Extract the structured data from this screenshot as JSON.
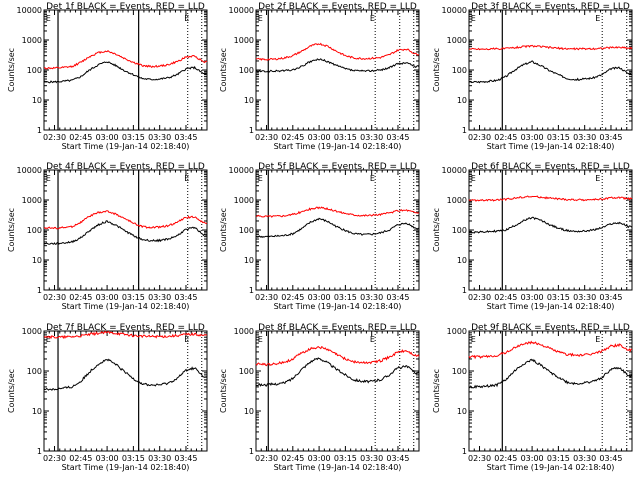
{
  "figure": {
    "xlabel": "Start Time (19-Jan-14 02:18:40)",
    "ylabel": "Counts/sec",
    "x_tick_labels": [
      "02:30",
      "02:45",
      "03:00",
      "03:15",
      "03:30",
      "03:45"
    ],
    "y_tick_labels": [
      "1",
      "10",
      "100",
      "1000",
      "10000"
    ],
    "legend_text": "BLACK = Events, RED = LLD"
  },
  "colors": {
    "events": "#000000",
    "lld": "#ff0000",
    "background": "#ffffff",
    "axes": "#000000"
  },
  "chart_data": [
    {
      "type": "line",
      "title": "Det 1f BLACK = Events, RED = LLD",
      "xlabel": "Start Time (19-Jan-14 02:18:40)",
      "ylabel": "Counts/sec",
      "yscale": "log",
      "ylim": [
        1,
        10000
      ],
      "xlim": [
        "02:24",
        "03:57"
      ],
      "x_ticks": [
        "02:30",
        "02:45",
        "03:00",
        "03:15",
        "03:30",
        "03:45"
      ],
      "x": [
        "02:24",
        "02:30",
        "02:35",
        "02:40",
        "02:45",
        "02:50",
        "02:55",
        "03:00",
        "03:05",
        "03:10",
        "03:15",
        "03:20",
        "03:25",
        "03:30",
        "03:35",
        "03:40",
        "03:45",
        "03:50",
        "03:55"
      ],
      "series": [
        {
          "name": "Events",
          "color": "#000000",
          "values": [
            40,
            40,
            42,
            45,
            60,
            100,
            150,
            190,
            140,
            95,
            70,
            52,
            48,
            50,
            55,
            70,
            110,
            120,
            75
          ]
        },
        {
          "name": "LLD",
          "color": "#ff0000",
          "values": [
            115,
            115,
            120,
            130,
            180,
            280,
            380,
            430,
            340,
            240,
            180,
            140,
            130,
            135,
            150,
            190,
            270,
            290,
            190
          ]
        }
      ],
      "solid_vlines": [
        "02:32",
        "03:18"
      ],
      "dotted_vlines": [
        "03:46",
        "03:54"
      ],
      "markers": [
        {
          "label": "E",
          "at": "02:25"
        },
        {
          "label": "E",
          "at": "03:44"
        }
      ]
    },
    {
      "type": "line",
      "title": "Det 2f BLACK = Events, RED = LLD",
      "xlabel": "Start Time (19-Jan-14 02:18:40)",
      "ylabel": "Counts/sec",
      "yscale": "log",
      "ylim": [
        1,
        10000
      ],
      "xlim": [
        "02:24",
        "03:57"
      ],
      "x_ticks": [
        "02:30",
        "02:45",
        "03:00",
        "03:15",
        "03:30",
        "03:45"
      ],
      "x": [
        "02:24",
        "02:30",
        "02:35",
        "02:40",
        "02:45",
        "02:50",
        "02:55",
        "03:00",
        "03:05",
        "03:10",
        "03:15",
        "03:20",
        "03:25",
        "03:30",
        "03:35",
        "03:40",
        "03:45",
        "03:50",
        "03:55"
      ],
      "series": [
        {
          "name": "Events",
          "color": "#000000",
          "values": [
            90,
            90,
            92,
            95,
            100,
            130,
            190,
            230,
            190,
            140,
            110,
            95,
            92,
            95,
            100,
            120,
            160,
            175,
            130
          ]
        },
        {
          "name": "LLD",
          "color": "#ff0000",
          "values": [
            230,
            225,
            230,
            250,
            300,
            420,
            620,
            760,
            620,
            420,
            300,
            250,
            240,
            245,
            260,
            320,
            460,
            500,
            340
          ]
        }
      ],
      "solid_vlines": [
        "02:31"
      ],
      "dotted_vlines": [
        "03:32",
        "03:46",
        "03:54"
      ],
      "markers": [
        {
          "label": "E",
          "at": "02:25"
        },
        {
          "label": "E",
          "at": "03:29"
        }
      ]
    },
    {
      "type": "line",
      "title": "Det 3f BLACK = Events, RED = LLD",
      "xlabel": "Start Time (19-Jan-14 02:18:40)",
      "ylabel": "Counts/sec",
      "yscale": "log",
      "ylim": [
        1,
        10000
      ],
      "xlim": [
        "02:24",
        "03:57"
      ],
      "x_ticks": [
        "02:30",
        "02:45",
        "03:00",
        "03:15",
        "03:30",
        "03:45"
      ],
      "x": [
        "02:24",
        "02:30",
        "02:35",
        "02:40",
        "02:45",
        "02:50",
        "02:55",
        "03:00",
        "03:05",
        "03:10",
        "03:15",
        "03:20",
        "03:25",
        "03:30",
        "03:35",
        "03:40",
        "03:45",
        "03:50",
        "03:55"
      ],
      "series": [
        {
          "name": "Events",
          "color": "#000000",
          "values": [
            40,
            40,
            42,
            45,
            60,
            100,
            150,
            190,
            140,
            95,
            70,
            52,
            48,
            50,
            55,
            70,
            110,
            120,
            75
          ]
        },
        {
          "name": "LLD",
          "color": "#ff0000",
          "values": [
            500,
            500,
            500,
            510,
            520,
            560,
            600,
            630,
            600,
            560,
            530,
            510,
            505,
            510,
            515,
            530,
            560,
            570,
            540
          ]
        }
      ],
      "solid_vlines": [
        "02:43"
      ],
      "dotted_vlines": [
        "03:40",
        "03:54"
      ],
      "markers": [
        {
          "label": "E",
          "at": "02:25"
        },
        {
          "label": "E",
          "at": "03:36"
        }
      ]
    },
    {
      "type": "line",
      "title": "Det 4f BLACK = Events, RED = LLD",
      "xlabel": "Start Time (19-Jan-14 02:18:40)",
      "ylabel": "Counts/sec",
      "yscale": "log",
      "ylim": [
        1,
        10000
      ],
      "xlim": [
        "02:24",
        "03:57"
      ],
      "x_ticks": [
        "02:30",
        "02:45",
        "03:00",
        "03:15",
        "03:30",
        "03:45"
      ],
      "x": [
        "02:24",
        "02:30",
        "02:35",
        "02:40",
        "02:45",
        "02:50",
        "02:55",
        "03:00",
        "03:05",
        "03:10",
        "03:15",
        "03:20",
        "03:25",
        "03:30",
        "03:35",
        "03:40",
        "03:45",
        "03:50",
        "03:55"
      ],
      "series": [
        {
          "name": "Events",
          "color": "#000000",
          "values": [
            35,
            35,
            37,
            40,
            55,
            95,
            150,
            195,
            145,
            95,
            65,
            48,
            44,
            45,
            50,
            65,
            105,
            120,
            70
          ]
        },
        {
          "name": "LLD",
          "color": "#ff0000",
          "values": [
            120,
            115,
            120,
            130,
            180,
            290,
            380,
            420,
            340,
            240,
            170,
            130,
            120,
            125,
            140,
            180,
            260,
            280,
            170
          ]
        }
      ],
      "solid_vlines": [
        "02:32",
        "03:18"
      ],
      "dotted_vlines": [
        "03:46",
        "03:54"
      ],
      "markers": [
        {
          "label": "E",
          "at": "02:25"
        },
        {
          "label": "E",
          "at": "03:44"
        }
      ]
    },
    {
      "type": "line",
      "title": "Det 5f BLACK = Events, RED = LLD",
      "xlabel": "Start Time (19-Jan-14 02:18:40)",
      "ylabel": "Counts/sec",
      "yscale": "log",
      "ylim": [
        1,
        10000
      ],
      "xlim": [
        "02:24",
        "03:57"
      ],
      "x_ticks": [
        "02:30",
        "02:45",
        "03:00",
        "03:15",
        "03:30",
        "03:45"
      ],
      "x": [
        "02:24",
        "02:30",
        "02:35",
        "02:40",
        "02:45",
        "02:50",
        "02:55",
        "03:00",
        "03:05",
        "03:10",
        "03:15",
        "03:20",
        "03:25",
        "03:30",
        "03:35",
        "03:40",
        "03:45",
        "03:50",
        "03:55"
      ],
      "series": [
        {
          "name": "Events",
          "color": "#000000",
          "values": [
            60,
            60,
            62,
            65,
            75,
            110,
            180,
            240,
            190,
            130,
            95,
            75,
            70,
            72,
            80,
            100,
            150,
            170,
            115
          ]
        },
        {
          "name": "LLD",
          "color": "#ff0000",
          "values": [
            290,
            285,
            290,
            300,
            330,
            400,
            500,
            560,
            500,
            420,
            360,
            320,
            305,
            310,
            330,
            370,
            440,
            460,
            380
          ]
        }
      ],
      "solid_vlines": [
        "02:31"
      ],
      "dotted_vlines": [
        "03:32",
        "03:46",
        "03:54"
      ],
      "markers": [
        {
          "label": "E",
          "at": "02:25"
        },
        {
          "label": "E",
          "at": "03:29"
        }
      ]
    },
    {
      "type": "line",
      "title": "Det 6f BLACK = Events, RED = LLD",
      "xlabel": "Start Time (19-Jan-14 02:18:40)",
      "ylabel": "Counts/sec",
      "yscale": "log",
      "ylim": [
        1,
        10000
      ],
      "xlim": [
        "02:24",
        "03:57"
      ],
      "x_ticks": [
        "02:30",
        "02:45",
        "03:00",
        "03:15",
        "03:30",
        "03:45"
      ],
      "x": [
        "02:24",
        "02:30",
        "02:35",
        "02:40",
        "02:45",
        "02:50",
        "02:55",
        "03:00",
        "03:05",
        "03:10",
        "03:15",
        "03:20",
        "03:25",
        "03:30",
        "03:35",
        "03:40",
        "03:45",
        "03:50",
        "03:55"
      ],
      "series": [
        {
          "name": "Events",
          "color": "#000000",
          "values": [
            85,
            85,
            88,
            92,
            100,
            140,
            200,
            260,
            210,
            150,
            115,
            95,
            90,
            92,
            100,
            120,
            160,
            175,
            130
          ]
        },
        {
          "name": "LLD",
          "color": "#ff0000",
          "values": [
            980,
            970,
            980,
            1000,
            1050,
            1150,
            1260,
            1300,
            1240,
            1150,
            1080,
            1030,
            1010,
            1010,
            1030,
            1080,
            1170,
            1200,
            1100
          ]
        }
      ],
      "solid_vlines": [
        "02:43"
      ],
      "dotted_vlines": [
        "03:40",
        "03:54"
      ],
      "markers": [
        {
          "label": "E",
          "at": "02:25"
        },
        {
          "label": "E",
          "at": "03:36"
        }
      ]
    },
    {
      "type": "line",
      "title": "Det 7f BLACK = Events, RED = LLD",
      "xlabel": "Start Time (19-Jan-14 02:18:40)",
      "ylabel": "Counts/sec",
      "yscale": "log",
      "ylim": [
        1,
        1000
      ],
      "xlim": [
        "02:24",
        "03:57"
      ],
      "x_ticks": [
        "02:30",
        "02:45",
        "03:00",
        "03:15",
        "03:30",
        "03:45"
      ],
      "x": [
        "02:24",
        "02:30",
        "02:35",
        "02:40",
        "02:45",
        "02:50",
        "02:55",
        "03:00",
        "03:05",
        "03:10",
        "03:15",
        "03:20",
        "03:25",
        "03:30",
        "03:35",
        "03:40",
        "03:45",
        "03:50",
        "03:55"
      ],
      "series": [
        {
          "name": "Events",
          "color": "#000000",
          "values": [
            35,
            35,
            37,
            40,
            55,
            95,
            150,
            195,
            145,
            95,
            65,
            48,
            44,
            45,
            50,
            65,
            105,
            120,
            70
          ]
        },
        {
          "name": "LLD",
          "color": "#ff0000",
          "values": [
            750,
            700,
            700,
            720,
            750,
            820,
            880,
            920,
            880,
            820,
            770,
            740,
            730,
            730,
            740,
            770,
            820,
            830,
            780
          ]
        }
      ],
      "solid_vlines": [
        "02:32",
        "03:18"
      ],
      "dotted_vlines": [
        "03:46",
        "03:54"
      ],
      "markers": [
        {
          "label": "E",
          "at": "02:25"
        },
        {
          "label": "E",
          "at": "03:44"
        }
      ]
    },
    {
      "type": "line",
      "title": "Det 8f BLACK = Events, RED = LLD",
      "xlabel": "Start Time (19-Jan-14 02:18:40)",
      "ylabel": "Counts/sec",
      "yscale": "log",
      "ylim": [
        1,
        1000
      ],
      "xlim": [
        "02:24",
        "03:57"
      ],
      "x_ticks": [
        "02:30",
        "02:45",
        "03:00",
        "03:15",
        "03:30",
        "03:45"
      ],
      "x": [
        "02:24",
        "02:30",
        "02:35",
        "02:40",
        "02:45",
        "02:50",
        "02:55",
        "03:00",
        "03:05",
        "03:10",
        "03:15",
        "03:20",
        "03:25",
        "03:30",
        "03:35",
        "03:40",
        "03:45",
        "03:50",
        "03:55"
      ],
      "series": [
        {
          "name": "Events",
          "color": "#000000",
          "values": [
            45,
            45,
            47,
            50,
            65,
            110,
            170,
            210,
            160,
            110,
            80,
            60,
            55,
            55,
            60,
            80,
            120,
            130,
            90
          ]
        },
        {
          "name": "LLD",
          "color": "#ff0000",
          "values": [
            150,
            145,
            150,
            165,
            200,
            280,
            360,
            400,
            340,
            260,
            200,
            170,
            160,
            165,
            180,
            220,
            300,
            320,
            240
          ]
        }
      ],
      "solid_vlines": [
        "02:31"
      ],
      "dotted_vlines": [
        "03:32",
        "03:46",
        "03:54"
      ],
      "markers": [
        {
          "label": "E",
          "at": "02:25"
        },
        {
          "label": "E",
          "at": "03:29"
        }
      ]
    },
    {
      "type": "line",
      "title": "Det 9f BLACK = Events, RED = LLD",
      "xlabel": "Start Time (19-Jan-14 02:18:40)",
      "ylabel": "Counts/sec",
      "yscale": "log",
      "ylim": [
        1,
        1000
      ],
      "xlim": [
        "02:24",
        "03:57"
      ],
      "x_ticks": [
        "02:30",
        "02:45",
        "03:00",
        "03:15",
        "03:30",
        "03:45"
      ],
      "x": [
        "02:24",
        "02:30",
        "02:35",
        "02:40",
        "02:45",
        "02:50",
        "02:55",
        "03:00",
        "03:05",
        "03:10",
        "03:15",
        "03:20",
        "03:25",
        "03:30",
        "03:35",
        "03:40",
        "03:45",
        "03:50",
        "03:55"
      ],
      "series": [
        {
          "name": "Events",
          "color": "#000000",
          "values": [
            40,
            40,
            42,
            45,
            60,
            100,
            150,
            190,
            140,
            95,
            70,
            52,
            48,
            50,
            55,
            70,
            110,
            120,
            75
          ]
        },
        {
          "name": "LLD",
          "color": "#ff0000",
          "values": [
            230,
            225,
            230,
            245,
            290,
            380,
            480,
            520,
            460,
            370,
            300,
            260,
            250,
            250,
            270,
            320,
            420,
            450,
            330
          ]
        }
      ],
      "solid_vlines": [
        "02:43"
      ],
      "dotted_vlines": [
        "03:40",
        "03:54"
      ],
      "markers": [
        {
          "label": "E",
          "at": "02:25"
        },
        {
          "label": "E",
          "at": "03:36"
        }
      ]
    }
  ]
}
